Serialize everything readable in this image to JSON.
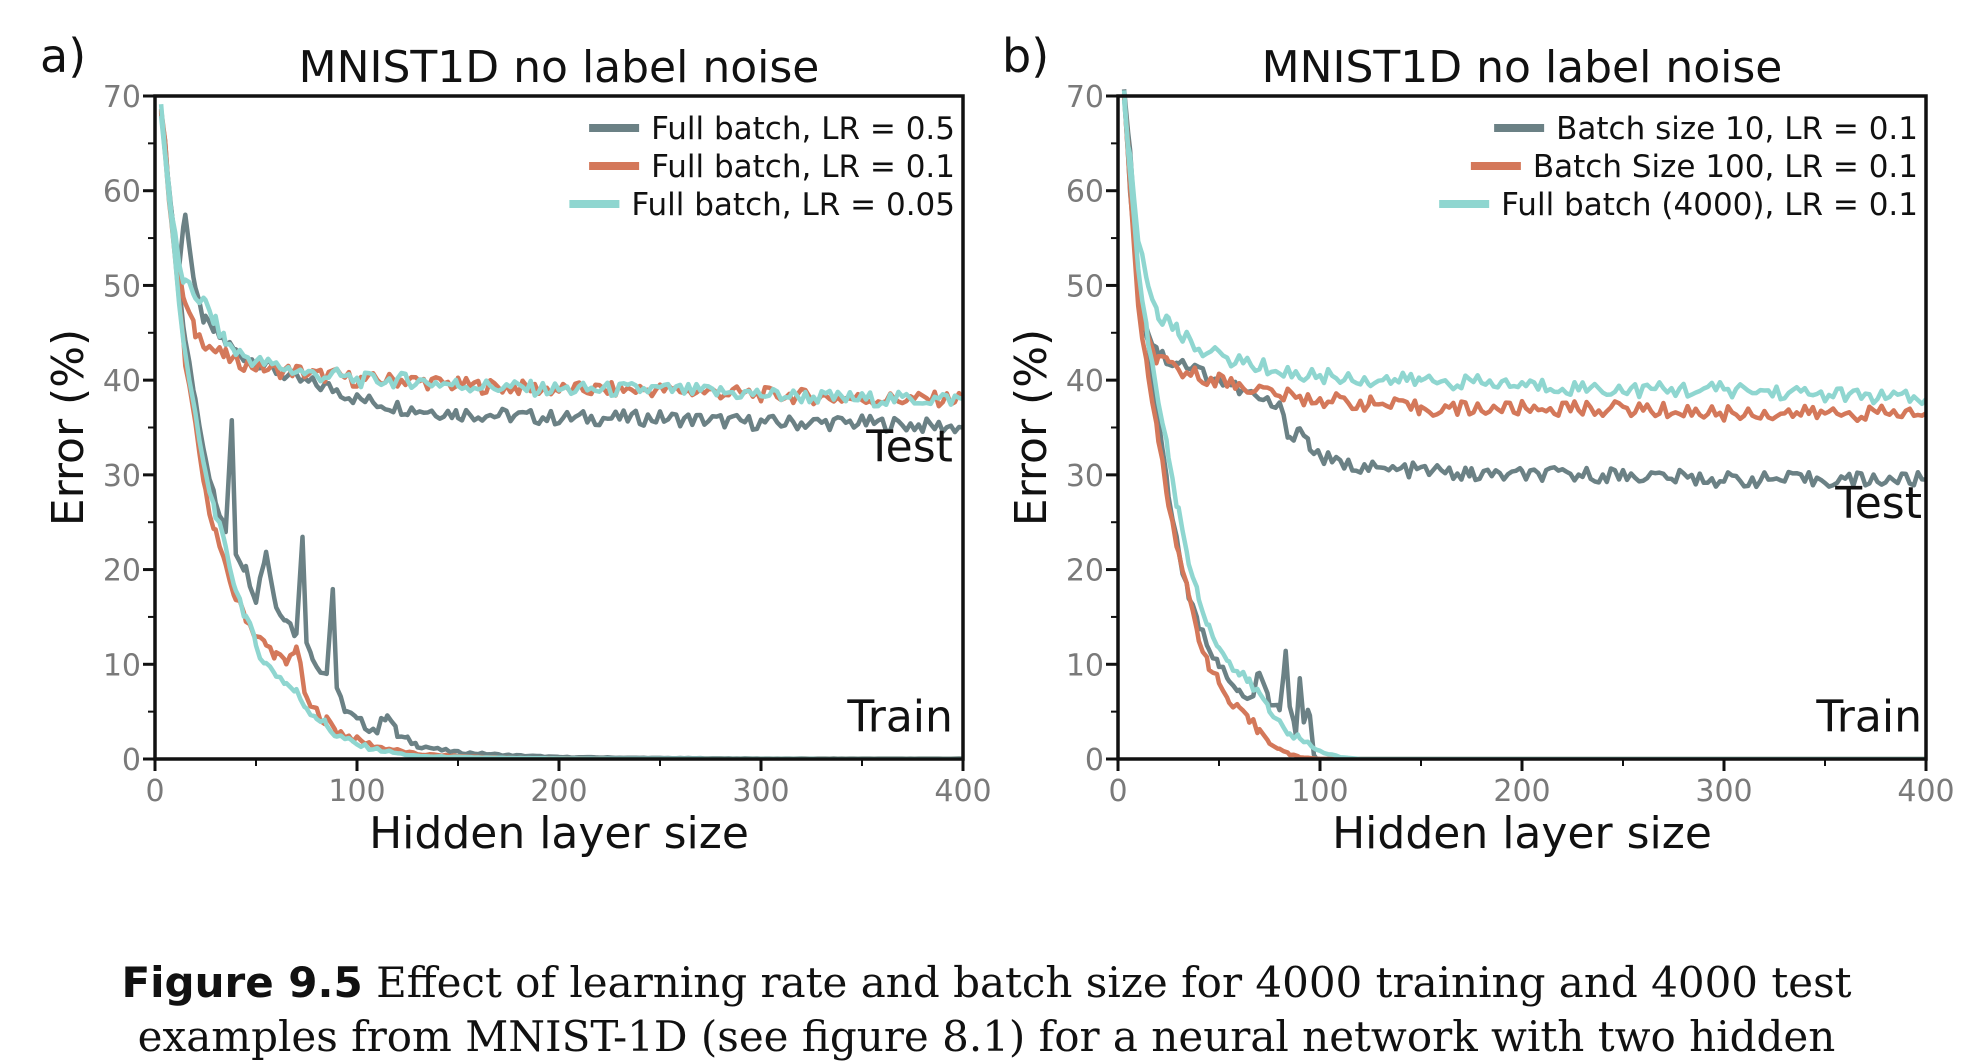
{
  "caption": {
    "label": "Figure 9.5",
    "text": "Effect of learning rate and batch size for 4000 training and 4000 test",
    "line2": "examples from MNIST-1D (see figure 8.1) for a neural network with two hidden"
  },
  "colors": {
    "gray": "#6b8185",
    "orange": "#d4785a",
    "cyan": "#8fd6d0",
    "axis": "#111111",
    "tick_label": "#7a7a7a"
  },
  "chart_data": [
    {
      "panel_label": "a)",
      "type": "line",
      "title": "MNIST1D no label noise",
      "xlabel": "Hidden layer size",
      "ylabel": "Error (%)",
      "xlim": [
        0,
        400
      ],
      "ylim": [
        0,
        70
      ],
      "xticks": [
        0,
        100,
        200,
        300,
        400
      ],
      "yticks": [
        0,
        10,
        20,
        30,
        40,
        50,
        60,
        70
      ],
      "legend_position": "top-right",
      "annotations": [
        {
          "text": "Test",
          "x": 395,
          "y": 31
        },
        {
          "text": "Train",
          "x": 395,
          "y": 2.5
        }
      ],
      "series": [
        {
          "name": "Full batch, LR = 0.5",
          "color_key": "gray",
          "test": {
            "x": [
              3,
              8,
              12,
              15,
              20,
              25,
              30,
              35,
              40,
              50,
              60,
              70,
              80,
              90,
              100,
              125,
              150,
              200,
              250,
              300,
              350,
              400
            ],
            "y": [
              69,
              58,
              52,
              58,
              49,
              46,
              45,
              44,
              43,
              42,
              41,
              40,
              39.5,
              39,
              38,
              37,
              36.5,
              36,
              36,
              35.5,
              35.5,
              35
            ]
          },
          "train": {
            "x": [
              3,
              8,
              12,
              15,
              20,
              25,
              30,
              35,
              38,
              40,
              45,
              50,
              55,
              60,
              65,
              70,
              73,
              75,
              78,
              80,
              85,
              88,
              90,
              95,
              100,
              110,
              115,
              120,
              125,
              130,
              140,
              150,
              175,
              200,
              250,
              300,
              350,
              400
            ],
            "y": [
              68,
              58,
              50,
              44,
              38,
              32,
              27,
              24,
              36,
              22,
              20,
              17,
              22,
              16,
              15,
              13,
              24,
              12,
              11,
              10,
              9,
              18,
              7,
              5,
              4,
              3,
              5,
              2.5,
              2,
              1.5,
              1,
              0.7,
              0.4,
              0.2,
              0.1,
              0.05,
              0.05,
              0.05
            ]
          }
        },
        {
          "name": "Full batch, LR = 0.1",
          "color_key": "orange",
          "test": {
            "x": [
              3,
              8,
              12,
              15,
              20,
              25,
              30,
              35,
              40,
              50,
              60,
              70,
              80,
              90,
              100,
              125,
              150,
              200,
              250,
              300,
              350,
              400
            ],
            "y": [
              69,
              58,
              51,
              48,
              45,
              44,
              43,
              42.5,
              42,
              41.5,
              41,
              41,
              40.5,
              40.5,
              40,
              40,
              39.5,
              39,
              39,
              38.5,
              38,
              38
            ]
          },
          "train": {
            "x": [
              3,
              8,
              12,
              15,
              20,
              25,
              30,
              35,
              40,
              45,
              50,
              55,
              60,
              65,
              70,
              75,
              80,
              85,
              90,
              100,
              110,
              120,
              130,
              150,
              175,
              200,
              250,
              300,
              350,
              400
            ],
            "y": [
              68,
              57,
              48,
              42,
              35,
              28,
              24,
              20,
              17,
              15,
              13,
              12,
              11,
              10,
              12,
              6,
              5,
              4,
              3,
              2,
              1.3,
              0.9,
              0.5,
              0.3,
              0.1,
              0.05,
              0.02,
              0.01,
              0,
              0
            ]
          }
        },
        {
          "name": "Full batch, LR = 0.05",
          "color_key": "cyan",
          "test": {
            "x": [
              3,
              8,
              12,
              15,
              20,
              25,
              30,
              35,
              40,
              50,
              60,
              70,
              80,
              90,
              100,
              125,
              150,
              200,
              250,
              300,
              350,
              400
            ],
            "y": [
              69,
              58,
              52,
              50,
              49,
              48,
              46,
              44,
              43,
              42,
              41.5,
              41,
              40.5,
              40.5,
              40,
              40,
              39.5,
              39,
              39,
              38.5,
              38,
              38
            ]
          },
          "train": {
            "x": [
              3,
              8,
              12,
              15,
              20,
              25,
              30,
              35,
              40,
              45,
              50,
              55,
              60,
              65,
              70,
              75,
              80,
              85,
              90,
              100,
              110,
              120,
              130,
              150,
              175,
              200,
              250,
              300,
              350,
              400
            ],
            "y": [
              68,
              57,
              48,
              43,
              36,
              30,
              26,
              22,
              18,
              15,
              12,
              10,
              9,
              8,
              7,
              5.5,
              4.5,
              3.5,
              2.5,
              1.5,
              1,
              0.6,
              0.3,
              0.2,
              0.1,
              0.05,
              0.02,
              0.01,
              0,
              0
            ]
          }
        }
      ]
    },
    {
      "panel_label": "b)",
      "type": "line",
      "title": "MNIST1D no label noise",
      "xlabel": "Hidden layer size",
      "ylabel": "Error (%)",
      "xlim": [
        0,
        400
      ],
      "ylim": [
        0,
        70
      ],
      "xticks": [
        0,
        100,
        200,
        300,
        400
      ],
      "yticks": [
        0,
        10,
        20,
        30,
        40,
        50,
        60,
        70
      ],
      "legend_position": "top-right",
      "annotations": [
        {
          "text": "Test",
          "x": 398,
          "y": 25
        },
        {
          "text": "Train",
          "x": 398,
          "y": 2.5
        }
      ],
      "series": [
        {
          "name": "Batch size 10, LR = 0.1",
          "color_key": "gray",
          "test": {
            "x": [
              3,
              6,
              10,
              15,
              20,
              25,
              30,
              40,
              50,
              60,
              70,
              80,
              85,
              90,
              95,
              100,
              110,
              120,
              130,
              150,
              175,
              200,
              250,
              300,
              350,
              400
            ],
            "y": [
              70,
              65,
              50,
              45,
              43,
              42,
              42,
              41,
              40,
              39,
              38,
              37,
              34,
              35,
              33,
              32,
              31,
              31,
              30.5,
              30.5,
              30,
              30,
              30,
              29.5,
              29.5,
              29.5
            ]
          },
          "train": {
            "x": [
              3,
              6,
              10,
              15,
              20,
              25,
              30,
              35,
              40,
              45,
              50,
              55,
              60,
              65,
              70,
              75,
              80,
              83,
              85,
              88,
              90,
              92,
              95,
              97,
              98,
              100,
              120,
              150,
              200,
              250,
              300,
              350,
              400
            ],
            "y": [
              70,
              60,
              50,
              44,
              36,
              28,
              22,
              17,
              14,
              12,
              10,
              8,
              7,
              6,
              9,
              6,
              5,
              11,
              6,
              3,
              8,
              4,
              5,
              0.5,
              0.1,
              0,
              0,
              0,
              0,
              0,
              0,
              0,
              0
            ]
          }
        },
        {
          "name": "Batch Size 100, LR = 0.1",
          "color_key": "orange",
          "test": {
            "x": [
              3,
              6,
              10,
              15,
              20,
              25,
              30,
              40,
              50,
              60,
              70,
              80,
              90,
              100,
              125,
              150,
              200,
              250,
              300,
              350,
              400
            ],
            "y": [
              70,
              62,
              48,
              44,
              42,
              41.5,
              41,
              40.5,
              40,
              39.5,
              39,
              38.5,
              38,
              38,
              37.5,
              37,
              37,
              37,
              36.5,
              36.5,
              36.5
            ]
          },
          "train": {
            "x": [
              3,
              6,
              10,
              15,
              20,
              25,
              30,
              35,
              40,
              45,
              50,
              55,
              60,
              65,
              70,
              75,
              80,
              85,
              90,
              100,
              120,
              150,
              200,
              250,
              300,
              350,
              400
            ],
            "y": [
              70,
              60,
              48,
              40,
              34,
              27,
              22,
              17,
              13,
              10,
              8,
              6,
              5,
              4,
              3,
              2,
              1,
              0.5,
              0.2,
              0,
              0,
              0,
              0,
              0,
              0,
              0,
              0
            ]
          }
        },
        {
          "name": "Full batch (4000), LR = 0.1",
          "color_key": "cyan",
          "test": {
            "x": [
              3,
              6,
              10,
              15,
              20,
              25,
              30,
              40,
              50,
              60,
              70,
              80,
              90,
              100,
              125,
              150,
              200,
              250,
              300,
              350,
              400
            ],
            "y": [
              70,
              63,
              55,
              50,
              47,
              46,
              45,
              43.5,
              42.5,
              42,
              41.5,
              41,
              40.5,
              40.5,
              40,
              40,
              39.5,
              39,
              39,
              38.5,
              38
            ]
          },
          "train": {
            "x": [
              3,
              6,
              10,
              15,
              20,
              25,
              30,
              35,
              40,
              45,
              50,
              55,
              60,
              65,
              70,
              75,
              80,
              85,
              90,
              100,
              110,
              120,
              150,
              200,
              250,
              300,
              350,
              400
            ],
            "y": [
              70,
              62,
              52,
              44,
              38,
              32,
              26,
              21,
              17,
              14,
              12,
              10,
              9,
              8,
              7,
              5,
              4,
              3,
              2,
              0.8,
              0.2,
              0,
              0,
              0,
              0,
              0,
              0,
              0
            ]
          }
        }
      ]
    }
  ]
}
